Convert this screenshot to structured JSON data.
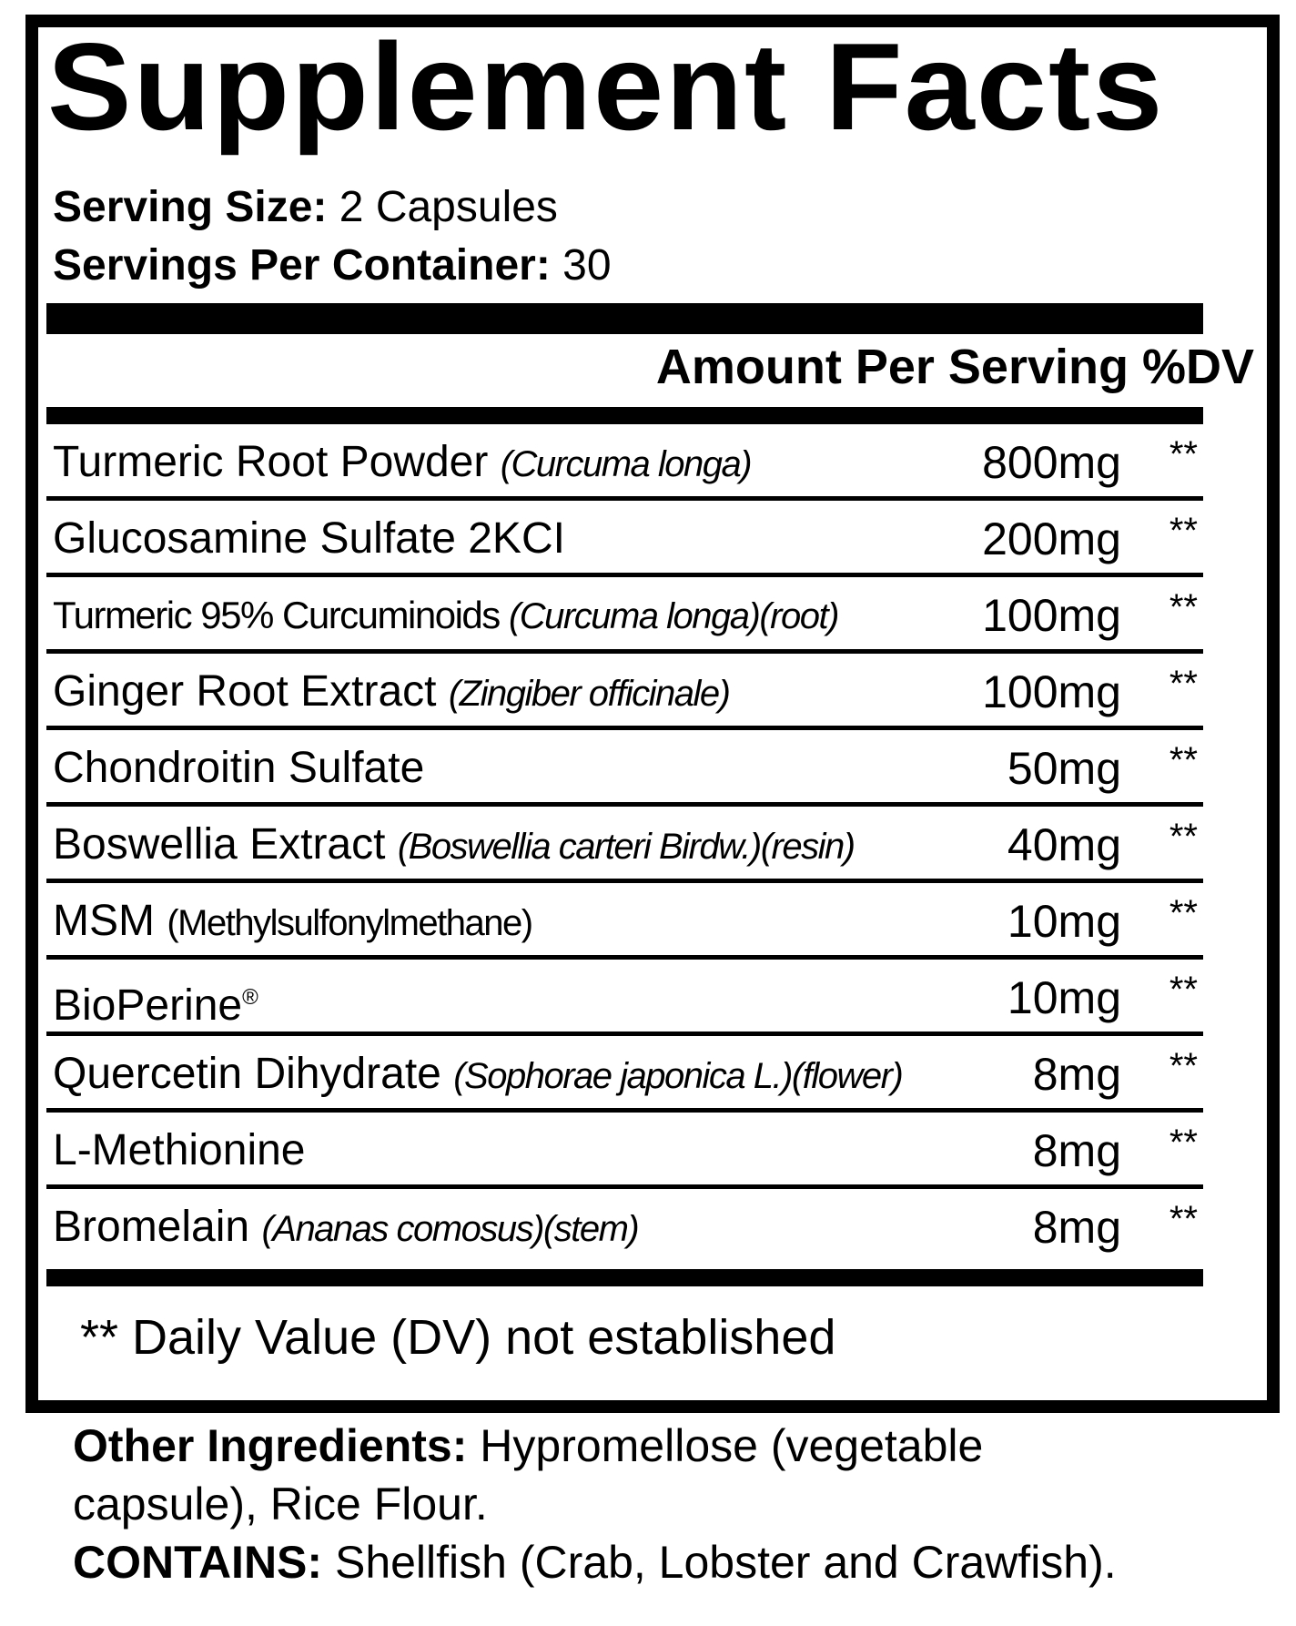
{
  "title": "Supplement Facts",
  "serving_size": {
    "label": "Serving Size:",
    "value": "2 Capsules"
  },
  "servings_per_container": {
    "label": "Servings Per Container:",
    "value": "30"
  },
  "header": "Amount Per Serving %DV",
  "rows": [
    {
      "name": "Turmeric Root Powder",
      "latin": "(Curcuma longa)",
      "amount": "800mg",
      "dv": "**"
    },
    {
      "name": "Glucosamine Sulfate 2KCI",
      "latin": "",
      "amount": "200mg",
      "dv": "**"
    },
    {
      "name": "Turmeric 95% Curcuminoids",
      "latin": "(Curcuma longa)(root)",
      "amount": "100mg",
      "dv": "**"
    },
    {
      "name": "Ginger Root Extract",
      "latin": "(Zingiber officinale)",
      "amount": "100mg",
      "dv": "**"
    },
    {
      "name": "Chondroitin Sulfate",
      "latin": "",
      "amount": "50mg",
      "dv": "**"
    },
    {
      "name": "Boswellia Extract",
      "latin": "(Boswellia carteri Birdw.)(resin)",
      "amount": "40mg",
      "dv": "**"
    },
    {
      "name": "MSM",
      "latin": "(Methylsulfonylmethane)",
      "amount": "10mg",
      "dv": "**"
    },
    {
      "name": "BioPerine",
      "sup": "®",
      "latin": "",
      "amount": "10mg",
      "dv": "**"
    },
    {
      "name": "Quercetin Dihydrate",
      "latin": "(Sophorae japonica L.)(flower)",
      "amount": "8mg",
      "dv": "**"
    },
    {
      "name": "L-Methionine",
      "latin": "",
      "amount": "8mg",
      "dv": "**"
    },
    {
      "name": "Bromelain",
      "latin": "(Ananas comosus)(stem)",
      "amount": "8mg",
      "dv": "**"
    }
  ],
  "footnote": "** Daily Value (DV) not established",
  "other_ingredients": {
    "label": "Other Ingredients:",
    "line1": "Hypromellose (vegetable",
    "line2": "capsule), Rice Flour."
  },
  "contains": {
    "label": "CONTAINS:",
    "value": "Shellfish (Crab, Lobster and Crawfish)."
  }
}
